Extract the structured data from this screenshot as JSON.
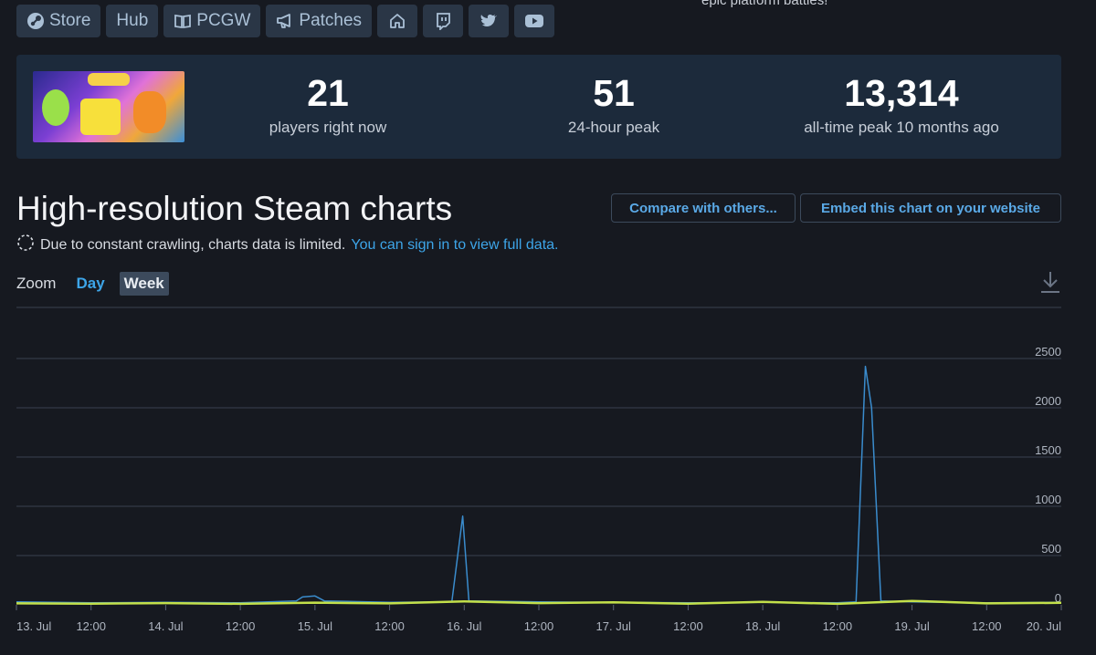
{
  "top_cut_text": "epic platform battles!",
  "nav": {
    "store": "Store",
    "hub": "Hub",
    "pcgw": "PCGW",
    "patches": "Patches",
    "icons": [
      "home-icon",
      "twitch-icon",
      "twitter-icon",
      "youtube-icon"
    ]
  },
  "stats": {
    "current": {
      "value": "21",
      "label": "players right now"
    },
    "peak24": {
      "value": "51",
      "label": "24-hour peak"
    },
    "alltime": {
      "value": "13,314",
      "label": "all-time peak 10 months ago"
    }
  },
  "heading": "High-resolution Steam charts",
  "buttons": {
    "compare": "Compare with others...",
    "embed": "Embed this chart on your website"
  },
  "notice": {
    "text": "Due to constant crawling, charts data is limited.",
    "link": "You can sign in to view full data."
  },
  "zoom": {
    "label": "Zoom",
    "options": [
      "Day",
      "Week"
    ],
    "selected": "Week"
  },
  "colors": {
    "background": "#161920",
    "panel": "#1c2a3b",
    "accent": "#3da5e8",
    "line_players": "#3a8ccd",
    "line_avg": "#c3e04a",
    "grid": "#3a4150"
  },
  "chart_data": {
    "type": "line",
    "title": "",
    "xlabel": "",
    "ylabel": "",
    "ylim": [
      0,
      2500
    ],
    "yticks": [
      0,
      500,
      1000,
      1500,
      2000,
      2500
    ],
    "grid": true,
    "x_range": [
      "13. Jul 00:00",
      "20. Jul 00:00"
    ],
    "xticks": [
      "13. Jul",
      "12:00",
      "14. Jul",
      "12:00",
      "15. Jul",
      "12:00",
      "16. Jul",
      "12:00",
      "17. Jul",
      "12:00",
      "18. Jul",
      "12:00",
      "19. Jul",
      "12:00",
      "20. Jul"
    ],
    "series": [
      {
        "points": [
          [
            "13. Jul 00:00",
            30
          ],
          [
            "13. Jul 12:00",
            20
          ],
          [
            "14. Jul 00:00",
            25
          ],
          [
            "14. Jul 12:00",
            20
          ],
          [
            "14. Jul 21:00",
            40
          ],
          [
            "14. Jul 22:00",
            80
          ],
          [
            "15. Jul 00:00",
            90
          ],
          [
            "15. Jul 01:30",
            40
          ],
          [
            "15. Jul 12:00",
            25
          ],
          [
            "15. Jul 22:00",
            30
          ],
          [
            "15. Jul 23:45",
            900
          ],
          [
            "16. Jul 00:45",
            40
          ],
          [
            "16. Jul 12:00",
            30
          ],
          [
            "17. Jul 00:00",
            25
          ],
          [
            "17. Jul 12:00",
            20
          ],
          [
            "18. Jul 00:00",
            25
          ],
          [
            "18. Jul 12:00",
            20
          ],
          [
            "18. Jul 15:00",
            30
          ],
          [
            "18. Jul 16:30",
            2420
          ],
          [
            "18. Jul 17:30",
            2000
          ],
          [
            "18. Jul 19:00",
            40
          ],
          [
            "19. Jul 00:00",
            30
          ],
          [
            "19. Jul 12:00",
            20
          ],
          [
            "20. Jul 00:00",
            25
          ]
        ]
      },
      {
        "points": [
          [
            "13. Jul 00:00",
            15
          ],
          [
            "13. Jul 12:00",
            12
          ],
          [
            "14. Jul 00:00",
            18
          ],
          [
            "14. Jul 12:00",
            10
          ],
          [
            "15. Jul 00:00",
            22
          ],
          [
            "15. Jul 12:00",
            15
          ],
          [
            "16. Jul 00:00",
            35
          ],
          [
            "16. Jul 12:00",
            18
          ],
          [
            "17. Jul 00:00",
            25
          ],
          [
            "17. Jul 12:00",
            12
          ],
          [
            "18. Jul 00:00",
            30
          ],
          [
            "18. Jul 12:00",
            10
          ],
          [
            "19. Jul 00:00",
            40
          ],
          [
            "19. Jul 12:00",
            15
          ],
          [
            "20. Jul 00:00",
            20
          ]
        ]
      }
    ]
  }
}
